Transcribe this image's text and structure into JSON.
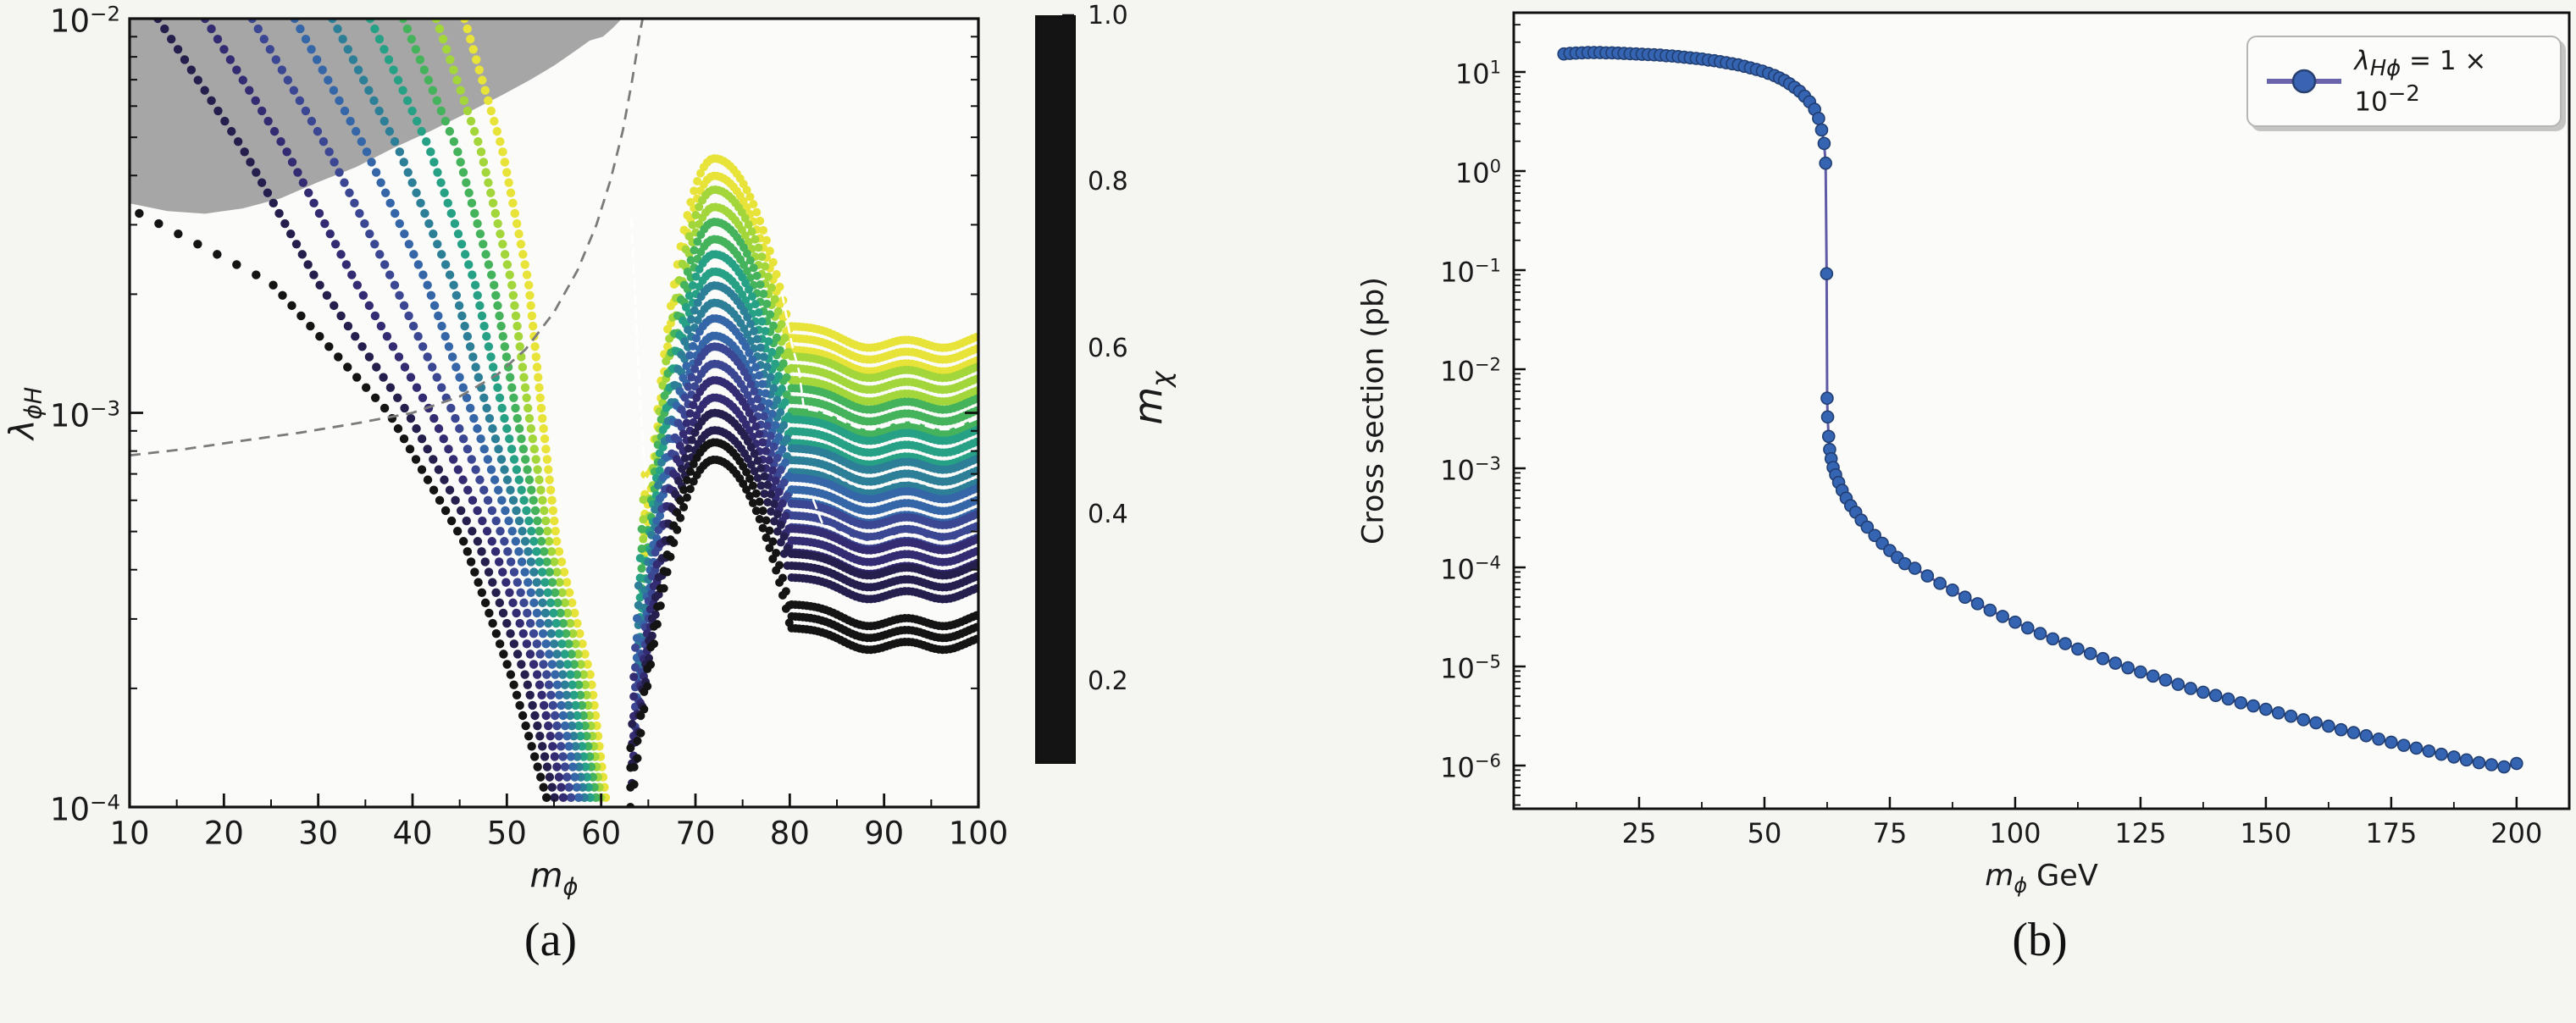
{
  "figure": {
    "background": "#f5f5f2"
  },
  "chart_data": [
    {
      "type": "scatter",
      "caption": "(a)",
      "xlabel": {
        "base": "m",
        "sub": "ϕ"
      },
      "ylabel": {
        "base": "λ",
        "sub": "ϕH"
      },
      "xlim": [
        10,
        100
      ],
      "ylog_lim": [
        -4,
        -2
      ],
      "x_ticks": [
        10,
        20,
        30,
        40,
        50,
        60,
        70,
        80,
        90,
        100
      ],
      "x_minor_step": 5,
      "y_tick_exponents": [
        -2,
        -3,
        -4
      ],
      "grid": false,
      "colorbar": {
        "label": {
          "base": "m",
          "sub": "χ"
        },
        "tick_labels": [
          "0.2",
          "0.4",
          "0.6",
          "0.8",
          "1.0"
        ],
        "tick_values": [
          0.2,
          0.4,
          0.6,
          0.8,
          1.0
        ],
        "vmin": 0.1,
        "vmax": 1.0
      },
      "left_lognodes": [
        -2,
        -2.33,
        -2.67,
        -3,
        -3.33,
        -3.67,
        -4
      ],
      "levels": [
        {
          "m_chi": 0.1,
          "color": "#141414",
          "left_x_nodes": [
            -30,
            -2,
            25,
            37.5,
            45.5,
            50.5,
            54.5
          ],
          "wall_x": 63.1,
          "wall_bottom": 0.0001,
          "peak": 0.0008,
          "plateau": 0.000305
        },
        {
          "m_chi": 0.2,
          "color": "#251f4e",
          "left_x_nodes": [
            13,
            22,
            30,
            39.5,
            47,
            52,
            55.3
          ],
          "wall_x": 63.26,
          "wall_bottom": 0.000115,
          "peak": 0.00095,
          "plateau": 0.00041
        },
        {
          "m_chi": 0.3,
          "color": "#342c72",
          "left_x_nodes": [
            18,
            26.5,
            34,
            42,
            48.5,
            53.3,
            56.2
          ],
          "wall_x": 63.42,
          "wall_bottom": 0.000135,
          "peak": 0.00115,
          "plateau": 0.000475
        },
        {
          "m_chi": 0.4,
          "color": "#3b4793",
          "left_x_nodes": [
            23,
            31,
            38,
            44.3,
            49.8,
            54.3,
            57
          ],
          "wall_x": 63.58,
          "wall_bottom": 0.00016,
          "peak": 0.0014,
          "plateau": 0.00055
        },
        {
          "m_chi": 0.5,
          "color": "#3566a8",
          "left_x_nodes": [
            27.5,
            35,
            41.5,
            46.3,
            51,
            55.2,
            57.8
          ],
          "wall_x": 63.74,
          "wall_bottom": 0.00019,
          "peak": 0.00165,
          "plateau": 0.00064
        },
        {
          "m_chi": 0.6,
          "color": "#2c7f97",
          "left_x_nodes": [
            31.5,
            38.5,
            44.3,
            48,
            52,
            56,
            58.4
          ],
          "wall_x": 63.9,
          "wall_bottom": 0.00023,
          "peak": 0.002,
          "plateau": 0.00076
        },
        {
          "m_chi": 0.7,
          "color": "#27a186",
          "left_x_nodes": [
            35.5,
            41.8,
            46.6,
            49.6,
            52.9,
            56.8,
            59
          ],
          "wall_x": 64.06,
          "wall_bottom": 0.00027,
          "peak": 0.0024,
          "plateau": 0.0009
        },
        {
          "m_chi": 0.8,
          "color": "#45b35b",
          "left_x_nodes": [
            39,
            44.7,
            48.6,
            51,
            53.7,
            57.5,
            59.6
          ],
          "wall_x": 64.22,
          "wall_bottom": 0.00032,
          "peak": 0.0029,
          "plateau": 0.00108
        },
        {
          "m_chi": 0.9,
          "color": "#a3d63a",
          "left_x_nodes": [
            42.5,
            47.2,
            50.5,
            52.3,
            54.5,
            58.2,
            60.1
          ],
          "wall_x": 64.38,
          "wall_bottom": 0.00038,
          "peak": 0.0035,
          "plateau": 0.0013
        },
        {
          "m_chi": 1.0,
          "color": "#e8e339",
          "left_x_nodes": [
            45.5,
            49.5,
            52.3,
            53.7,
            55.3,
            58.9,
            60.6
          ],
          "wall_x": 64.54,
          "wall_bottom": 0.00044,
          "peak": 0.0042,
          "plateau": 0.00155
        }
      ],
      "bump_center": 72,
      "gray_region": {
        "color": "#a6a6a6",
        "boundary": [
          [
            10,
            0.0034
          ],
          [
            14,
            0.00325
          ],
          [
            18,
            0.0032
          ],
          [
            22,
            0.0033
          ],
          [
            26,
            0.0035
          ],
          [
            30,
            0.00385
          ],
          [
            34,
            0.0042
          ],
          [
            38,
            0.0047
          ],
          [
            42,
            0.0052
          ],
          [
            46,
            0.0058
          ],
          [
            49.5,
            0.0064
          ],
          [
            52.5,
            0.007
          ],
          [
            55,
            0.0076
          ],
          [
            57,
            0.0082
          ],
          [
            58.8,
            0.0088
          ],
          [
            60.2,
            0.009
          ],
          [
            61.3,
            0.0095
          ],
          [
            62.2,
            0.01
          ]
        ]
      },
      "dashed_curve": {
        "color": "#7b7b7b",
        "points": [
          [
            10,
            0.00078
          ],
          [
            16,
            0.00081
          ],
          [
            22,
            0.00085
          ],
          [
            28,
            0.00089
          ],
          [
            34,
            0.00094
          ],
          [
            40,
            0.001
          ],
          [
            45,
            0.0011
          ],
          [
            49,
            0.00125
          ],
          [
            52,
            0.00145
          ],
          [
            55,
            0.0018
          ],
          [
            57.5,
            0.0023
          ],
          [
            59.5,
            0.003
          ],
          [
            61,
            0.0039
          ],
          [
            62.3,
            0.0052
          ],
          [
            63.3,
            0.007
          ],
          [
            64.1,
            0.0092
          ],
          [
            64.4,
            0.01
          ]
        ]
      },
      "white_contours": [
        {
          "style": "dashed",
          "lead": [
            [
              79.2,
              0.002
            ],
            [
              80.2,
              0.0015
            ],
            [
              81,
              0.00127
            ]
          ],
          "base": 0.00103,
          "x0": 81.5,
          "x1": 100
        },
        {
          "style": "dotted",
          "lead": [],
          "base": 0.00073,
          "x0": 84,
          "x1": 97
        },
        {
          "style": "dashed",
          "lead": [
            [
              82.5,
              0.0006
            ]
          ],
          "base": 0.000535,
          "x0": 83.5,
          "x1": 100
        },
        {
          "style": "dashed",
          "lead": [
            [
              63.2,
              0.0031
            ],
            [
              63.7,
              0.00175
            ],
            [
              64.2,
              0.001
            ],
            [
              64.8,
              0.00063
            ]
          ],
          "base": 0,
          "x0": 0,
          "x1": 0
        }
      ]
    },
    {
      "type": "line",
      "caption": "(b)",
      "xlabel": {
        "base": "m",
        "sub": "ϕ",
        "suffix": " GeV"
      },
      "ylabel": "Cross section (pb)",
      "xlim": [
        0,
        210.5
      ],
      "ylog_lim": [
        -6.44,
        1.6
      ],
      "x_ticks": [
        25,
        50,
        75,
        100,
        125,
        150,
        175,
        200
      ],
      "y_tick_exponents": [
        1,
        0,
        -1,
        -2,
        -3,
        -4,
        -5,
        -6
      ],
      "grid": false,
      "legend": {
        "text": "λ_Hϕ = 1 × 10^−2",
        "parts": {
          "sym": "λ",
          "sub": "Hϕ",
          "eq": " = 1 × 10",
          "exp": "−2"
        },
        "line_color": "#6a64aa",
        "marker_color": "#3a63b4",
        "marker_edge": "#26406f"
      },
      "line_color": "#5f5aa6",
      "marker_color": "#3565b2",
      "marker_edge": "#223f73",
      "x": [
        10,
        11.2,
        12.4,
        13.6,
        14.8,
        16,
        17.2,
        18.4,
        19.6,
        20.8,
        22,
        23.2,
        24.4,
        25.6,
        26.8,
        28,
        29.2,
        30.4,
        31.6,
        32.8,
        34,
        35.2,
        36.4,
        37.6,
        38.8,
        40,
        41.2,
        42.4,
        43.6,
        44.8,
        46,
        47.2,
        48.4,
        49.6,
        50.8,
        52,
        53,
        54,
        55,
        56,
        57,
        58,
        59,
        60,
        60.8,
        61.4,
        61.9,
        62.2,
        62.4,
        62.5,
        62.6,
        62.8,
        63,
        63.3,
        63.7,
        64.2,
        64.8,
        65.5,
        66.3,
        67.2,
        68.2,
        69.3,
        70.5,
        72,
        73.5,
        75,
        76.5,
        78,
        80,
        82.5,
        85,
        87.5,
        90,
        92.5,
        95,
        97.5,
        100,
        102.5,
        105,
        107.5,
        110,
        112.5,
        115,
        117.5,
        120,
        122.5,
        125,
        127.5,
        130,
        132.5,
        135,
        137.5,
        140,
        142.5,
        145,
        147.5,
        150,
        152.5,
        155,
        157.5,
        160,
        162.5,
        165,
        167.5,
        170,
        172.5,
        175,
        177.5,
        180,
        182.5,
        185,
        187.5,
        190,
        192.5,
        195,
        197.5,
        200
      ],
      "y": [
        15.2,
        15.4,
        15.5,
        15.6,
        15.7,
        15.7,
        15.7,
        15.6,
        15.6,
        15.5,
        15.4,
        15.3,
        15.2,
        15.1,
        15.0,
        14.9,
        14.8,
        14.6,
        14.5,
        14.3,
        14.1,
        13.9,
        13.7,
        13.5,
        13.2,
        13.0,
        12.7,
        12.4,
        12.1,
        11.8,
        11.4,
        11.0,
        10.6,
        10.2,
        9.7,
        9.2,
        8.7,
        8.2,
        7.6,
        7.0,
        6.4,
        5.7,
        5.0,
        4.2,
        3.4,
        2.6,
        1.9,
        1.2,
        0.092,
        0.0051,
        0.0033,
        0.0021,
        0.00155,
        0.00125,
        0.00102,
        0.00086,
        0.00072,
        0.0006,
        0.0005,
        0.00042,
        0.00036,
        0.0003,
        0.000255,
        0.00021,
        0.000175,
        0.000148,
        0.000126,
        0.000109,
        9.8e-05,
        8.2e-05,
        6.9e-05,
        5.9e-05,
        5e-05,
        4.3e-05,
        3.7e-05,
        3.2e-05,
        2.8e-05,
        2.45e-05,
        2.15e-05,
        1.9e-05,
        1.7e-05,
        1.5e-05,
        1.35e-05,
        1.2e-05,
        1.08e-05,
        9.7e-06,
        8.8e-06,
        8e-06,
        7.3e-06,
        6.6e-06,
        6e-06,
        5.5e-06,
        5.1e-06,
        4.7e-06,
        4.3e-06,
        4e-06,
        3.7e-06,
        3.4e-06,
        3.15e-06,
        2.9e-06,
        2.7e-06,
        2.5e-06,
        2.3e-06,
        2.15e-06,
        2e-06,
        1.85e-06,
        1.72e-06,
        1.6e-06,
        1.5e-06,
        1.4e-06,
        1.3e-06,
        1.22e-06,
        1.14e-06,
        1.07e-06,
        1.02e-06,
        9.7e-07,
        1.05e-06
      ]
    }
  ]
}
